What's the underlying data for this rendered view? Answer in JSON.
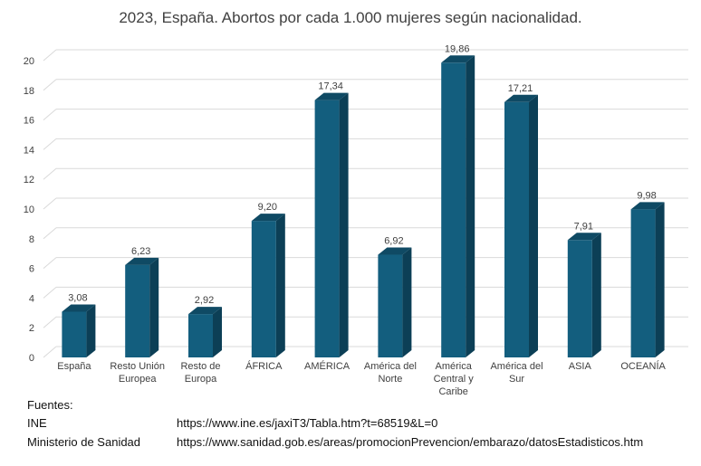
{
  "chart_data": {
    "type": "bar",
    "title": "2023, España. Abortos por cada 1.000 mujeres según nacionalidad.",
    "categories": [
      [
        "España"
      ],
      [
        "Resto Unión",
        "Europea"
      ],
      [
        "Resto de",
        "Europa"
      ],
      [
        "ÁFRICA"
      ],
      [
        "AMÉRICA"
      ],
      [
        "América del",
        "Norte"
      ],
      [
        "América",
        "Central y",
        "Caribe"
      ],
      [
        "América del",
        "Sur"
      ],
      [
        "ASIA"
      ],
      [
        "OCEANÍA"
      ]
    ],
    "values": [
      3.08,
      6.23,
      2.92,
      9.2,
      17.34,
      6.92,
      19.86,
      17.21,
      7.91,
      9.98
    ],
    "value_labels": [
      "3,08",
      "6,23",
      "2,92",
      "9,20",
      "17,34",
      "6,92",
      "19,86",
      "17,21",
      "7,91",
      "9,98"
    ],
    "ylim": [
      0,
      20
    ],
    "yticks": [
      0,
      2,
      4,
      6,
      8,
      10,
      12,
      14,
      16,
      18,
      20
    ],
    "grid": true,
    "bar_color": "#135e7e",
    "xlabel": "",
    "ylabel": ""
  },
  "sources": {
    "heading": "Fuentes:",
    "items": [
      {
        "name": "INE",
        "url": "https://www.ine.es/jaxiT3/Tabla.htm?t=68519&L=0"
      },
      {
        "name": "Ministerio de Sanidad",
        "url": "https://www.sanidad.gob.es/areas/promocionPrevencion/embarazo/datosEstadisticos.htm"
      }
    ]
  }
}
